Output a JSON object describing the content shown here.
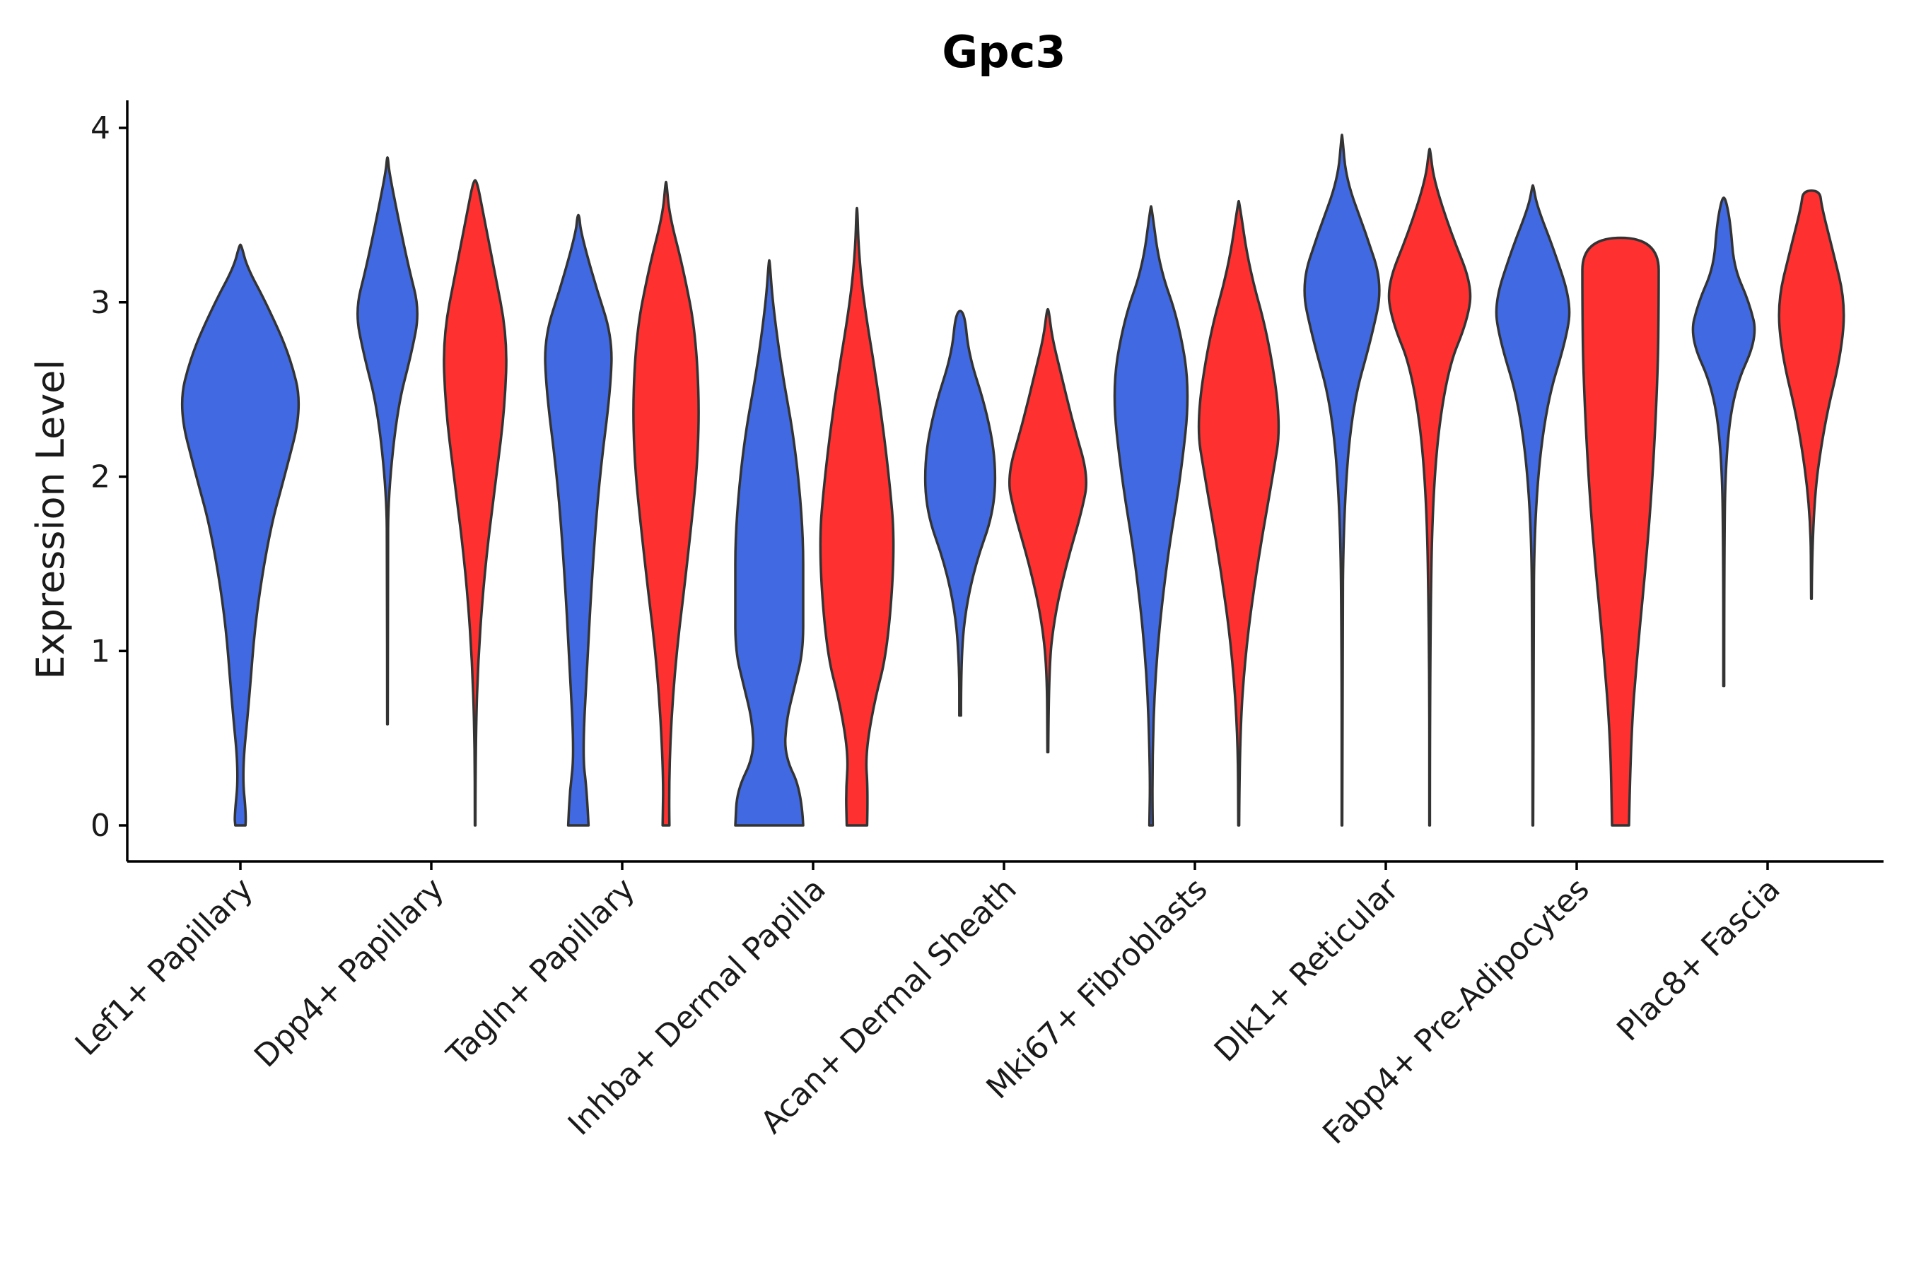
{
  "chart_data": {
    "type": "violin",
    "title": "Gpc3",
    "xlabel": "",
    "ylabel": "Expression Level",
    "ylim": [
      -0.2,
      4.15
    ],
    "yticks": [
      0,
      1,
      2,
      3,
      4
    ],
    "categories": [
      "Lef1+ Papillary",
      "Dpp4+ Papillary",
      "Tagln+ Papillary",
      "Inhba+ Dermal Papilla",
      "Acan+ Dermal Sheath",
      "Mki67+ Fibroblasts",
      "Dlk1+ Reticular",
      "Fabp4+ Pre-Adipocytes",
      "Plac8+ Fascia"
    ],
    "colors": {
      "group_1": "#4169E1",
      "group_2": "#FF3030"
    },
    "violins": [
      {
        "category": "Lef1+ Papillary",
        "group": "group_1",
        "min": 0,
        "max": 3.33,
        "profile": [
          [
            0,
            0.06
          ],
          [
            0.05,
            0.07
          ],
          [
            0.3,
            0.02
          ],
          [
            0.7,
            0.1
          ],
          [
            1.2,
            0.18
          ],
          [
            1.7,
            0.35
          ],
          [
            2.0,
            0.52
          ],
          [
            2.4,
            0.73
          ],
          [
            2.7,
            0.58
          ],
          [
            3.0,
            0.3
          ],
          [
            3.2,
            0.08
          ],
          [
            3.33,
            0.01
          ]
        ]
      },
      {
        "category": "Dpp4+ Papillary",
        "group": "group_1",
        "min": 0.58,
        "max": 3.83,
        "profile": [
          [
            0.58,
            0.003
          ],
          [
            1.5,
            0.005
          ],
          [
            1.9,
            0.01
          ],
          [
            2.4,
            0.12
          ],
          [
            2.7,
            0.28
          ],
          [
            2.95,
            0.38
          ],
          [
            3.2,
            0.25
          ],
          [
            3.5,
            0.12
          ],
          [
            3.75,
            0.02
          ],
          [
            3.83,
            0.005
          ]
        ]
      },
      {
        "category": "Dpp4+ Papillary",
        "group": "group_2",
        "min": 0,
        "max": 3.7,
        "profile": [
          [
            0,
            0.003
          ],
          [
            0.5,
            0.005
          ],
          [
            1.0,
            0.04
          ],
          [
            1.5,
            0.12
          ],
          [
            2.0,
            0.25
          ],
          [
            2.4,
            0.35
          ],
          [
            2.8,
            0.38
          ],
          [
            3.2,
            0.22
          ],
          [
            3.5,
            0.1
          ],
          [
            3.7,
            0.02
          ]
        ]
      },
      {
        "category": "Tagln+ Papillary",
        "group": "group_1",
        "min": 0,
        "max": 3.5,
        "profile": [
          [
            0,
            0.12
          ],
          [
            0.2,
            0.1
          ],
          [
            0.4,
            0.05
          ],
          [
            0.9,
            0.1
          ],
          [
            1.5,
            0.17
          ],
          [
            2.0,
            0.25
          ],
          [
            2.5,
            0.38
          ],
          [
            2.8,
            0.4
          ],
          [
            3.1,
            0.2
          ],
          [
            3.4,
            0.03
          ],
          [
            3.5,
            0.01
          ]
        ]
      },
      {
        "category": "Tagln+ Papillary",
        "group": "group_2",
        "min": 0,
        "max": 3.69,
        "profile": [
          [
            0,
            0.04
          ],
          [
            0.3,
            0.03
          ],
          [
            0.9,
            0.1
          ],
          [
            1.5,
            0.25
          ],
          [
            2.2,
            0.4
          ],
          [
            2.8,
            0.36
          ],
          [
            3.2,
            0.2
          ],
          [
            3.5,
            0.04
          ],
          [
            3.69,
            0.005
          ]
        ]
      },
      {
        "category": "Inhba+ Dermal Papilla",
        "group": "group_1",
        "min": 0,
        "max": 3.24,
        "profile": [
          [
            0,
            0.4
          ],
          [
            0.2,
            0.38
          ],
          [
            0.4,
            0.18
          ],
          [
            0.6,
            0.2
          ],
          [
            0.8,
            0.3
          ],
          [
            1.0,
            0.4
          ],
          [
            1.3,
            0.4
          ],
          [
            1.7,
            0.4
          ],
          [
            2.2,
            0.3
          ],
          [
            2.6,
            0.15
          ],
          [
            3.0,
            0.04
          ],
          [
            3.24,
            0.005
          ]
        ]
      },
      {
        "category": "Inhba+ Dermal Papilla",
        "group": "group_2",
        "min": 0,
        "max": 3.54,
        "profile": [
          [
            0,
            0.12
          ],
          [
            0.2,
            0.13
          ],
          [
            0.4,
            0.1
          ],
          [
            0.7,
            0.2
          ],
          [
            1.0,
            0.36
          ],
          [
            1.6,
            0.45
          ],
          [
            2.0,
            0.38
          ],
          [
            2.5,
            0.25
          ],
          [
            3.0,
            0.08
          ],
          [
            3.3,
            0.02
          ],
          [
            3.54,
            0.005
          ]
        ]
      },
      {
        "category": "Acan+ Dermal Sheath",
        "group": "group_1",
        "min": 0.63,
        "max": 2.95,
        "profile": [
          [
            0.63,
            0.01
          ],
          [
            0.9,
            0.01
          ],
          [
            1.2,
            0.05
          ],
          [
            1.5,
            0.18
          ],
          [
            1.8,
            0.4
          ],
          [
            2.1,
            0.42
          ],
          [
            2.4,
            0.3
          ],
          [
            2.7,
            0.1
          ],
          [
            2.95,
            0.05
          ]
        ]
      },
      {
        "category": "Acan+ Dermal Sheath",
        "group": "group_2",
        "min": 0.42,
        "max": 2.96,
        "profile": [
          [
            0.42,
            0.005
          ],
          [
            0.9,
            0.01
          ],
          [
            1.2,
            0.08
          ],
          [
            1.5,
            0.22
          ],
          [
            1.8,
            0.4
          ],
          [
            2.0,
            0.48
          ],
          [
            2.3,
            0.3
          ],
          [
            2.6,
            0.15
          ],
          [
            2.8,
            0.05
          ],
          [
            2.96,
            0.01
          ]
        ]
      },
      {
        "category": "Mki67+ Fibroblasts",
        "group": "group_1",
        "min": 0,
        "max": 3.55,
        "profile": [
          [
            0,
            0.02
          ],
          [
            0.3,
            0.01
          ],
          [
            0.9,
            0.05
          ],
          [
            1.5,
            0.18
          ],
          [
            2.0,
            0.35
          ],
          [
            2.5,
            0.46
          ],
          [
            2.9,
            0.32
          ],
          [
            3.2,
            0.1
          ],
          [
            3.55,
            0.005
          ]
        ]
      },
      {
        "category": "Mki67+ Fibroblasts",
        "group": "group_2",
        "min": 0,
        "max": 3.58,
        "profile": [
          [
            0,
            0.005
          ],
          [
            0.5,
            0.01
          ],
          [
            1.0,
            0.08
          ],
          [
            1.5,
            0.22
          ],
          [
            2.0,
            0.4
          ],
          [
            2.3,
            0.5
          ],
          [
            2.8,
            0.35
          ],
          [
            3.2,
            0.12
          ],
          [
            3.58,
            0.005
          ]
        ]
      },
      {
        "category": "Dlk1+ Reticular",
        "group": "group_1",
        "min": 0,
        "max": 3.96,
        "profile": [
          [
            0,
            0.003
          ],
          [
            1.0,
            0.003
          ],
          [
            1.8,
            0.02
          ],
          [
            2.4,
            0.12
          ],
          [
            2.8,
            0.35
          ],
          [
            3.1,
            0.48
          ],
          [
            3.4,
            0.28
          ],
          [
            3.7,
            0.05
          ],
          [
            3.96,
            0.003
          ]
        ]
      },
      {
        "category": "Dlk1+ Reticular",
        "group": "group_2",
        "min": 0,
        "max": 3.88,
        "profile": [
          [
            0,
            0.003
          ],
          [
            1.0,
            0.003
          ],
          [
            2.0,
            0.04
          ],
          [
            2.6,
            0.2
          ],
          [
            2.9,
            0.45
          ],
          [
            3.1,
            0.5
          ],
          [
            3.4,
            0.25
          ],
          [
            3.7,
            0.05
          ],
          [
            3.88,
            0.005
          ]
        ]
      },
      {
        "category": "Fabp4+ Pre-Adipocytes",
        "group": "group_1",
        "min": 0,
        "max": 3.67,
        "profile": [
          [
            0,
            0.003
          ],
          [
            1.0,
            0.005
          ],
          [
            1.8,
            0.02
          ],
          [
            2.4,
            0.15
          ],
          [
            2.8,
            0.4
          ],
          [
            3.0,
            0.45
          ],
          [
            3.3,
            0.25
          ],
          [
            3.55,
            0.05
          ],
          [
            3.67,
            0.005
          ]
        ]
      },
      {
        "category": "Fabp4+ Pre-Adipocytes",
        "group": "group_2",
        "min": 0,
        "max": 3.37,
        "profile": [
          [
            0,
            0.1
          ],
          [
            0.5,
            0.12
          ],
          [
            1.0,
            0.2
          ],
          [
            1.5,
            0.3
          ],
          [
            2.0,
            0.38
          ],
          [
            2.6,
            0.44
          ],
          [
            3.0,
            0.45
          ],
          [
            3.37,
            0.45
          ]
        ]
      },
      {
        "category": "Plac8+ Fascia",
        "group": "group_1",
        "min": 0.8,
        "max": 3.6,
        "profile": [
          [
            0.8,
            0.005
          ],
          [
            1.5,
            0.005
          ],
          [
            2.1,
            0.02
          ],
          [
            2.5,
            0.12
          ],
          [
            2.8,
            0.4
          ],
          [
            3.0,
            0.3
          ],
          [
            3.2,
            0.12
          ],
          [
            3.45,
            0.08
          ],
          [
            3.6,
            0.02
          ]
        ]
      },
      {
        "category": "Plac8+ Fascia",
        "group": "group_2",
        "min": 1.3,
        "max": 3.64,
        "profile": [
          [
            1.3,
            0.003
          ],
          [
            1.8,
            0.01
          ],
          [
            2.3,
            0.15
          ],
          [
            2.7,
            0.35
          ],
          [
            3.0,
            0.4
          ],
          [
            3.3,
            0.25
          ],
          [
            3.55,
            0.12
          ],
          [
            3.64,
            0.1
          ]
        ]
      }
    ]
  }
}
